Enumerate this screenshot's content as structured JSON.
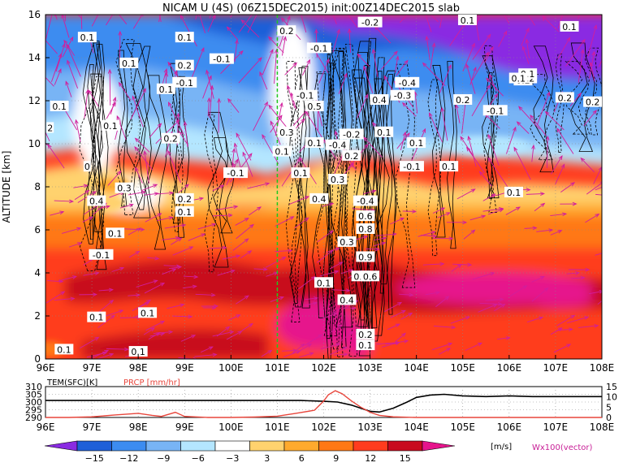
{
  "title": "NICAM U (4S) (06Z15DEC2015) init:00Z14DEC2015 slab",
  "chart_data": [
    {
      "type": "heatmap",
      "variable": "U",
      "ylabel": "ALTITUDE [km]",
      "x_ticks": [
        "96E",
        "97E",
        "98E",
        "99E",
        "100E",
        "101E",
        "102E",
        "103E",
        "104E",
        "105E",
        "106E",
        "107E",
        "108E"
      ],
      "x_values": [
        96,
        97,
        98,
        99,
        100,
        101,
        102,
        103,
        104,
        105,
        106,
        107,
        108
      ],
      "y_ticks": [
        "0",
        "2",
        "4",
        "6",
        "8",
        "10",
        "12",
        "14",
        "16"
      ],
      "y_values": [
        0,
        2,
        4,
        6,
        8,
        10,
        12,
        14,
        16
      ],
      "xlim": [
        96,
        108
      ],
      "ylim": [
        0,
        16
      ],
      "grid": true,
      "marker_line_x": 101,
      "contour_labels": [
        {
          "x": 96.9,
          "y": 14.9,
          "t": "0.1"
        },
        {
          "x": 99.0,
          "y": 14.9,
          "t": "0.1"
        },
        {
          "x": 97.8,
          "y": 13.7,
          "t": "0.1"
        },
        {
          "x": 99.0,
          "y": 13.6,
          "t": "0.2"
        },
        {
          "x": 99.8,
          "y": 13.9,
          "t": "-0.1"
        },
        {
          "x": 98.6,
          "y": 12.5,
          "t": "0.1"
        },
        {
          "x": 99.0,
          "y": 12.8,
          "t": "-0.1"
        },
        {
          "x": 96.3,
          "y": 11.7,
          "t": "0.1"
        },
        {
          "x": 96.1,
          "y": 10.7,
          "t": "2"
        },
        {
          "x": 97.4,
          "y": 10.8,
          "t": "0.1"
        },
        {
          "x": 98.7,
          "y": 10.2,
          "t": "0.2"
        },
        {
          "x": 96.9,
          "y": 8.9,
          "t": "0"
        },
        {
          "x": 97.7,
          "y": 7.9,
          "t": "0.3"
        },
        {
          "x": 97.1,
          "y": 7.3,
          "t": "0.4"
        },
        {
          "x": 99.0,
          "y": 7.4,
          "t": "0.2"
        },
        {
          "x": 99.0,
          "y": 6.8,
          "t": "0.1"
        },
        {
          "x": 97.5,
          "y": 5.8,
          "t": "0.1"
        },
        {
          "x": 97.2,
          "y": 4.8,
          "t": "-0.1"
        },
        {
          "x": 100.1,
          "y": 8.6,
          "t": "-0.1"
        },
        {
          "x": 101.2,
          "y": 15.2,
          "t": "0.2"
        },
        {
          "x": 101.6,
          "y": 12.2,
          "t": "-0.1"
        },
        {
          "x": 101.9,
          "y": 14.4,
          "t": "-0.1"
        },
        {
          "x": 101.2,
          "y": 10.5,
          "t": "0.3"
        },
        {
          "x": 101.1,
          "y": 9.6,
          "t": "0.1"
        },
        {
          "x": 101.8,
          "y": 11.7,
          "t": "0.5"
        },
        {
          "x": 101.8,
          "y": 10.0,
          "t": "0.1"
        },
        {
          "x": 102.3,
          "y": 8.3,
          "t": "0.3"
        },
        {
          "x": 101.5,
          "y": 8.6,
          "t": "0.1"
        },
        {
          "x": 102.6,
          "y": 10.4,
          "t": "-0.2"
        },
        {
          "x": 102.3,
          "y": 9.9,
          "t": "-0.4"
        },
        {
          "x": 102.6,
          "y": 9.4,
          "t": "0.2"
        },
        {
          "x": 101.9,
          "y": 7.4,
          "t": "0.4"
        },
        {
          "x": 102.9,
          "y": 7.3,
          "t": "-0.4"
        },
        {
          "x": 102.9,
          "y": 6.6,
          "t": "0.6"
        },
        {
          "x": 102.9,
          "y": 6.0,
          "t": "0.8"
        },
        {
          "x": 102.5,
          "y": 5.4,
          "t": "0.3"
        },
        {
          "x": 102.9,
          "y": 4.7,
          "t": "0.9"
        },
        {
          "x": 102.8,
          "y": 3.8,
          "t": "0.6"
        },
        {
          "x": 103.0,
          "y": 3.8,
          "t": "0.6"
        },
        {
          "x": 102.0,
          "y": 3.5,
          "t": "0.1"
        },
        {
          "x": 102.5,
          "y": 2.7,
          "t": "0.4"
        },
        {
          "x": 102.9,
          "y": 1.1,
          "t": "0.2"
        },
        {
          "x": 102.9,
          "y": 0.6,
          "t": "0.1"
        },
        {
          "x": 103.8,
          "y": 12.8,
          "t": "-0.4"
        },
        {
          "x": 103.7,
          "y": 12.2,
          "t": "-0.3"
        },
        {
          "x": 103.2,
          "y": 12.0,
          "t": "0.4"
        },
        {
          "x": 103.3,
          "y": 10.5,
          "t": "0.1"
        },
        {
          "x": 104.0,
          "y": 10.0,
          "t": "0.1"
        },
        {
          "x": 103.9,
          "y": 8.9,
          "t": "-0.1"
        },
        {
          "x": 104.7,
          "y": 8.9,
          "t": "0.1"
        },
        {
          "x": 105.0,
          "y": 12.0,
          "t": "0.2"
        },
        {
          "x": 105.7,
          "y": 11.5,
          "t": "-0.1"
        },
        {
          "x": 106.1,
          "y": 7.7,
          "t": "0.1"
        },
        {
          "x": 107.2,
          "y": 12.1,
          "t": "0.2"
        },
        {
          "x": 107.8,
          "y": 11.9,
          "t": "0.2"
        },
        {
          "x": 106.3,
          "y": 12.9,
          "t": "0.2"
        },
        {
          "x": 106.4,
          "y": 13.0,
          "t": "0.2"
        },
        {
          "x": 106.4,
          "y": 13.2,
          "t": "0.1"
        },
        {
          "x": 105.1,
          "y": 15.7,
          "t": "0.1"
        },
        {
          "x": 107.3,
          "y": 15.4,
          "t": "0.1"
        },
        {
          "x": 103.0,
          "y": 15.6,
          "t": "-0.2"
        },
        {
          "x": 97.1,
          "y": 1.9,
          "t": "0.1"
        },
        {
          "x": 98.2,
          "y": 2.1,
          "t": "0.1"
        },
        {
          "x": 96.4,
          "y": 0.4,
          "t": "0.1"
        },
        {
          "x": 98.0,
          "y": 0.3,
          "t": "0.1"
        },
        {
          "x": 106.2,
          "y": 13.0,
          "t": "0.1"
        }
      ],
      "colorbar": {
        "levels": [
          "-15",
          "-12",
          "-9",
          "-6",
          "-3",
          "3",
          "6",
          "9",
          "12",
          "15"
        ],
        "unit": "[m/s]",
        "colors": [
          "#8a2be2",
          "#1e5fd8",
          "#3c8cf0",
          "#78b4f5",
          "#b4e6ff",
          "#ffffff",
          "#ffd26e",
          "#ffaa2d",
          "#ff7814",
          "#ff3c1e",
          "#c80a1e",
          "#e6148c"
        ]
      },
      "vector_label": "Wx100(vector)"
    },
    {
      "type": "line",
      "left_label": "TEM(SFC)[K]",
      "right_label": "PRCP [mm/hr]",
      "left_ticks": [
        "290",
        "295",
        "300",
        "305",
        "310"
      ],
      "right_ticks": [
        "0",
        "5",
        "10",
        "15"
      ],
      "x_ticks": [
        "96E",
        "97E",
        "98E",
        "99E",
        "100E",
        "101E",
        "102E",
        "103E",
        "104E",
        "105E",
        "106E",
        "107E",
        "108E"
      ],
      "xlim": [
        96,
        108
      ],
      "left_ylim": [
        290,
        310
      ],
      "right_ylim": [
        0,
        15
      ],
      "series": [
        {
          "name": "TEM(SFC)[K]",
          "color": "#000000",
          "x": [
            96,
            96.5,
            97,
            97.5,
            98,
            98.5,
            99,
            99.5,
            100,
            100.5,
            101,
            101.5,
            102,
            102.3,
            102.6,
            102.8,
            103,
            103.2,
            103.5,
            103.8,
            104,
            104.3,
            104.6,
            105,
            105.5,
            106,
            106.5,
            107,
            107.5,
            108
          ],
          "y": [
            301,
            301,
            301,
            301,
            301,
            301,
            301,
            301,
            301,
            301,
            301,
            301,
            300.5,
            300,
            298,
            296,
            294,
            293.5,
            296,
            300,
            303,
            304.5,
            305,
            304,
            303.5,
            304,
            303.5,
            303.5,
            303.5,
            303.5
          ]
        },
        {
          "name": "PRCP [mm/hr]",
          "color": "#e8463c",
          "x": [
            96,
            96.5,
            97,
            97.5,
            98,
            98.3,
            98.5,
            98.8,
            99,
            99.5,
            100,
            100.5,
            101,
            101.4,
            101.8,
            102,
            102.1,
            102.25,
            102.4,
            102.6,
            102.8,
            103,
            103.2,
            103.5,
            104,
            105,
            106,
            107,
            108
          ],
          "y": [
            0,
            0,
            0.3,
            1.2,
            2.0,
            1.0,
            0.5,
            2.5,
            0.5,
            0,
            0,
            0.2,
            0.6,
            2.0,
            3.5,
            8.0,
            11.0,
            13.0,
            11.5,
            8.0,
            5.0,
            2.5,
            1.0,
            0.3,
            0,
            0,
            0,
            0,
            0
          ]
        }
      ]
    }
  ]
}
